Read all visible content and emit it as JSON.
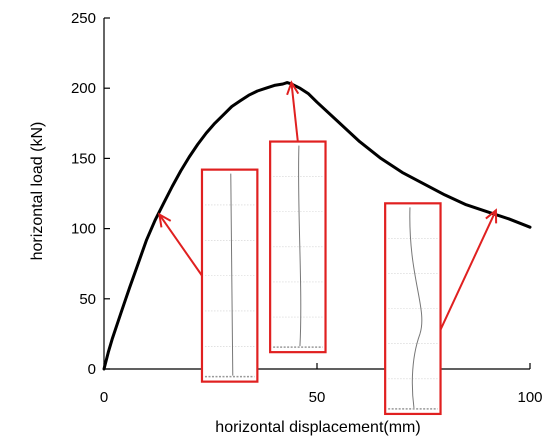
{
  "chart_data": {
    "type": "line",
    "title": "",
    "xlabel": "horizontal displacement(mm)",
    "ylabel": "horizontal load (kN)",
    "xlim": [
      0,
      100
    ],
    "ylim": [
      0,
      250
    ],
    "xticks": [
      0,
      50,
      100
    ],
    "yticks": [
      0,
      50,
      100,
      150,
      200,
      250
    ],
    "grid": false,
    "legend": "none",
    "series": [
      {
        "color": "#000000",
        "x": [
          0,
          1,
          2,
          4,
          6,
          8,
          10,
          12,
          14,
          16,
          18,
          20,
          22,
          24,
          26,
          28,
          30,
          32,
          34,
          36,
          38,
          40,
          42,
          43,
          44,
          46,
          48,
          50,
          55,
          60,
          65,
          70,
          75,
          80,
          85,
          90,
          95,
          100
        ],
        "y": [
          0,
          12,
          22,
          40,
          58,
          75,
          92,
          106,
          118,
          130,
          141,
          151,
          160,
          168,
          175,
          181,
          187,
          191,
          195,
          198,
          200,
          202,
          203,
          204,
          203,
          200,
          196,
          190,
          176,
          162,
          150,
          140,
          132,
          124,
          117,
          112,
          107,
          101
        ]
      }
    ],
    "annotations": [
      {
        "name": "deformation-inset-1",
        "points_to": {
          "x": 13,
          "y": 110
        },
        "inset_x": [
          23,
          36
        ],
        "inset_y": [
          -9,
          142
        ]
      },
      {
        "name": "deformation-inset-2",
        "points_to": {
          "x": 44,
          "y": 204
        },
        "inset_x": [
          39,
          52
        ],
        "inset_y": [
          12,
          162
        ]
      },
      {
        "name": "deformation-inset-3",
        "points_to": {
          "x": 92,
          "y": 113
        },
        "inset_x": [
          66,
          79
        ],
        "inset_y": [
          -32,
          118
        ]
      }
    ],
    "annotation_color": "#e02020"
  }
}
